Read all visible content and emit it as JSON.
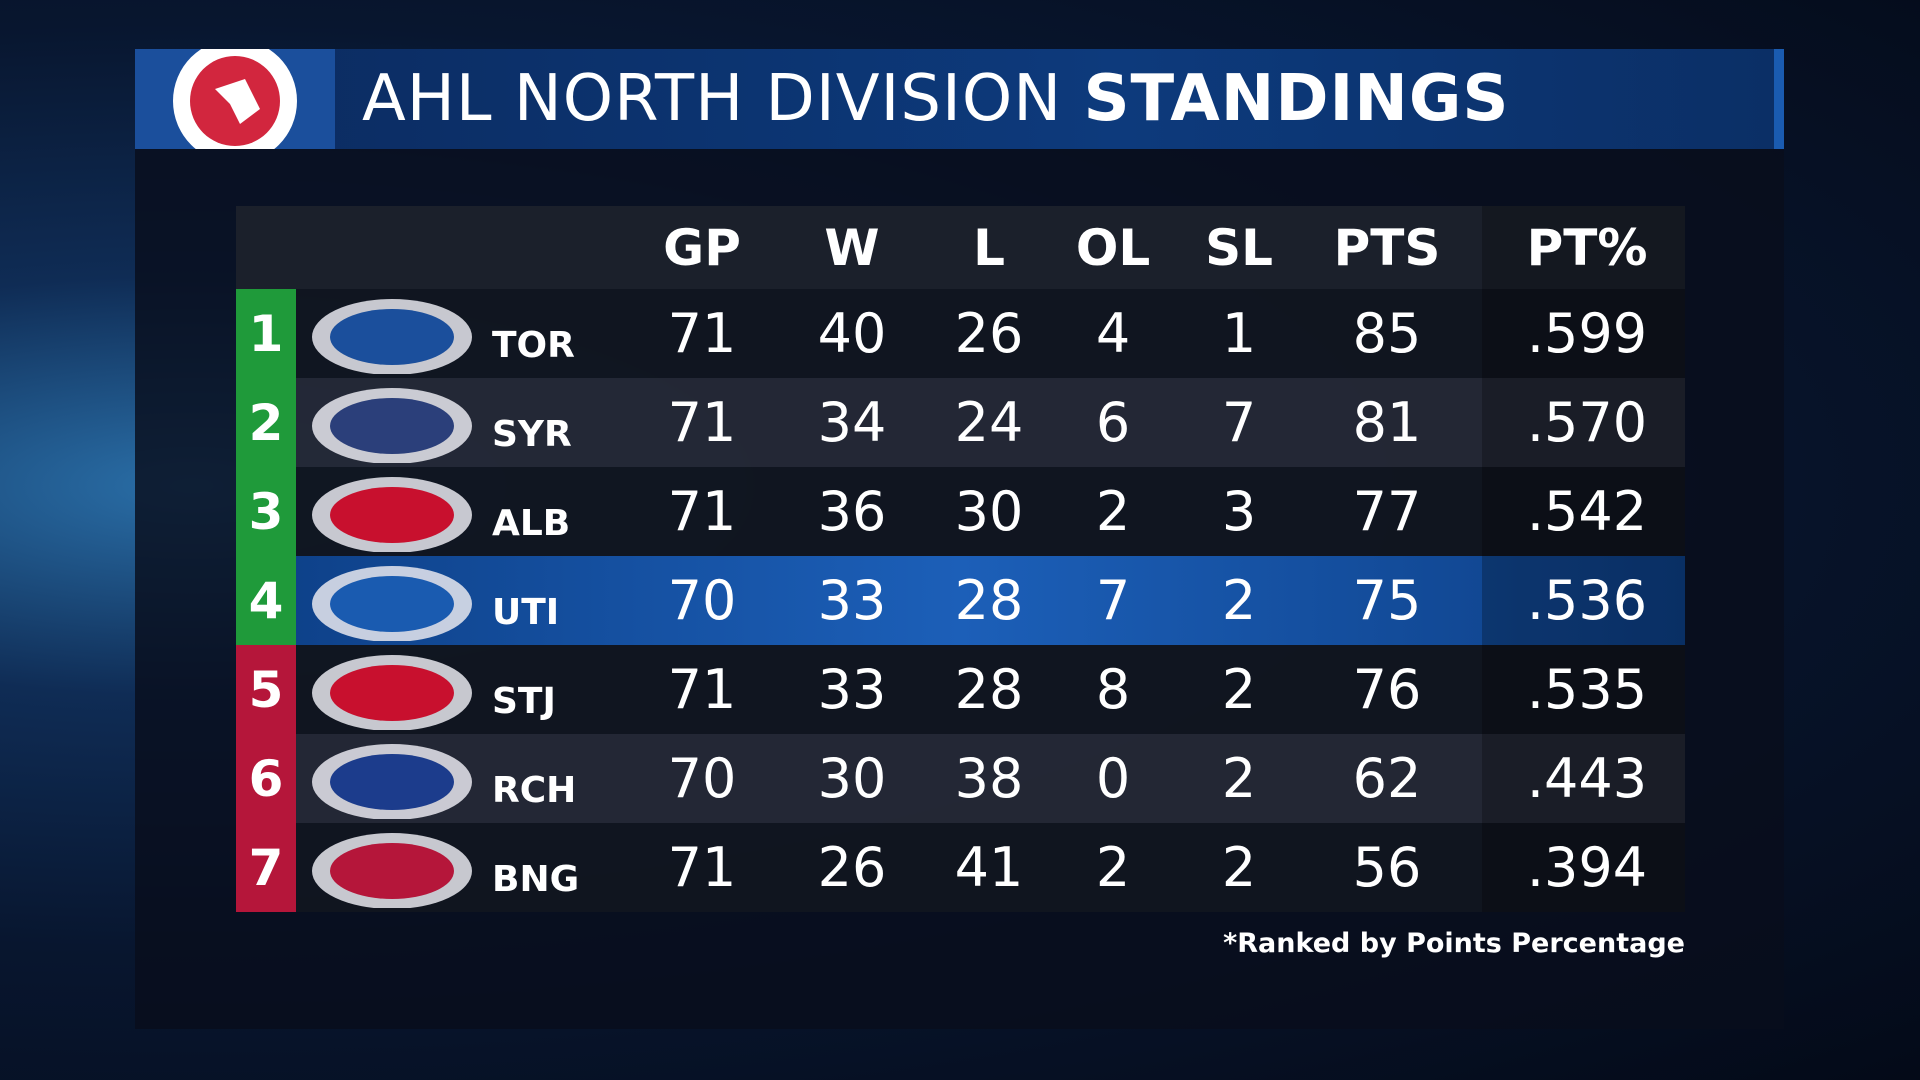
{
  "header": {
    "title_light": "AHL NORTH DIVISION",
    "title_bold": "STANDINGS"
  },
  "table": {
    "columns": [
      "GP",
      "W",
      "L",
      "OL",
      "SL",
      "PTS",
      "PT%"
    ],
    "rows": [
      {
        "rank": "1",
        "team": "TOR",
        "values": [
          "71",
          "40",
          "26",
          "4",
          "1",
          "85",
          ".599"
        ]
      },
      {
        "rank": "2",
        "team": "SYR",
        "values": [
          "71",
          "34",
          "24",
          "6",
          "7",
          "81",
          ".570"
        ]
      },
      {
        "rank": "3",
        "team": "ALB",
        "values": [
          "71",
          "36",
          "30",
          "2",
          "3",
          "77",
          ".542"
        ]
      },
      {
        "rank": "4",
        "team": "UTI",
        "values": [
          "70",
          "33",
          "28",
          "7",
          "2",
          "75",
          ".536"
        ]
      },
      {
        "rank": "5",
        "team": "STJ",
        "values": [
          "71",
          "33",
          "28",
          "8",
          "2",
          "76",
          ".535"
        ]
      },
      {
        "rank": "6",
        "team": "RCH",
        "values": [
          "70",
          "30",
          "38",
          "0",
          "2",
          "62",
          ".443"
        ]
      },
      {
        "rank": "7",
        "team": "BNG",
        "values": [
          "71",
          "26",
          "41",
          "2",
          "2",
          "56",
          ".394"
        ]
      }
    ]
  },
  "footnote": "*Ranked by Points Percentage"
}
